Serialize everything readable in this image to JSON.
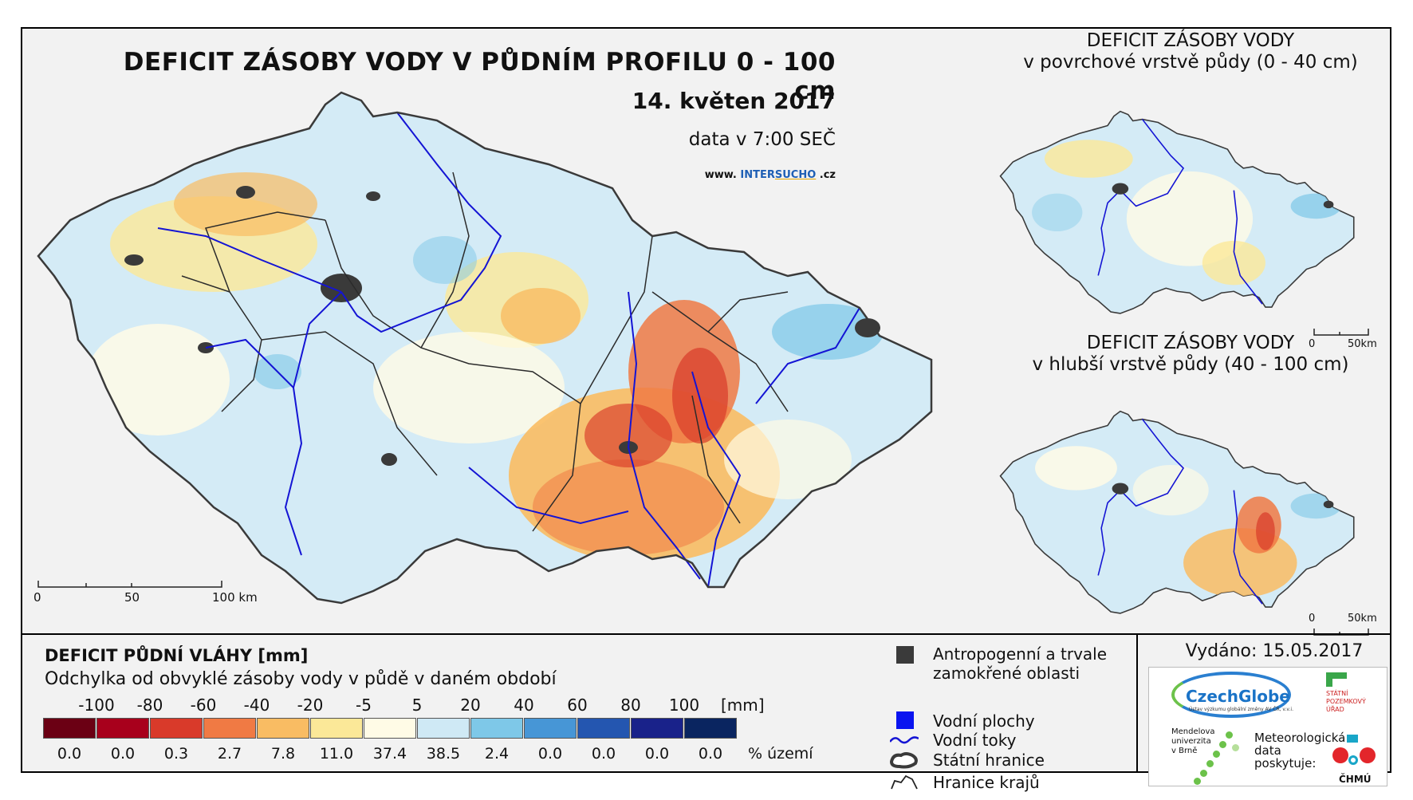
{
  "main": {
    "title": "DEFICIT ZÁSOBY VODY V PŮDNÍM PROFILU 0 - 100 cm",
    "date": "14. květen 2017",
    "time": "data v 7:00 SEČ",
    "url_prefix": "www. ",
    "url_a": "INTER",
    "url_b": "SUCHO",
    "url_c": " .cz",
    "scale": [
      "0",
      "50",
      "100 km"
    ]
  },
  "inset_top": {
    "title_line1": "DEFICIT ZÁSOBY VODY",
    "title_line2": "v povrchové vrstvě půdy (0 - 40 cm)",
    "scale": [
      "0",
      "50km"
    ]
  },
  "inset_bottom": {
    "title_line1": "DEFICIT ZÁSOBY VODY",
    "title_line2": "v hlubší vrstvě půdy (40 - 100 cm)",
    "scale": [
      "0",
      "50km"
    ]
  },
  "legend": {
    "title": "DEFICIT PŮDNÍ VLÁHY [mm]",
    "subtitle": "Odchylka od obvyklé zásoby vody v půdě v daném období",
    "ticks": [
      "-100",
      "-80",
      "-60",
      "-40",
      "-20",
      "-5",
      "5",
      "20",
      "40",
      "60",
      "80",
      "100"
    ],
    "unit": "[mm]",
    "colors": [
      "#6b0014",
      "#a8001c",
      "#d93a2a",
      "#f07a44",
      "#f9bc63",
      "#fbe898",
      "#fffbe6",
      "#cfe9f5",
      "#7ec8e8",
      "#4796d6",
      "#2456b0",
      "#19228a",
      "#0a2560"
    ],
    "percent": [
      "0.0",
      "0.0",
      "0.3",
      "2.7",
      "7.8",
      "11.0",
      "37.4",
      "38.5",
      "2.4",
      "0.0",
      "0.0",
      "0.0",
      "0.0"
    ],
    "percent_unit": "% území"
  },
  "key": {
    "anthropogenic_line1": "Antropogenní a trvale",
    "anthropogenic_line2": "zamokřené oblasti",
    "water_areas": "Vodní plochy",
    "rivers": "Vodní toky",
    "state_border": "Státní hranice",
    "region_border": "Hranice krajů"
  },
  "issued": "Vydáno: 15.05.2017",
  "logos": {
    "czechglobe": "CzechGlobe",
    "czechglobe_small": "Ústav výzkumu globální změny AV ČR, v.v.i.",
    "spu": [
      "STÁTNÍ",
      "POZEMKOVÝ",
      "ÚŘAD"
    ],
    "mendel": [
      "Mendelova",
      "univerzita",
      "v Brně"
    ],
    "meteo": [
      "Meteorologická",
      "data",
      "poskytuje:"
    ],
    "chmu": "ČHMÚ"
  }
}
